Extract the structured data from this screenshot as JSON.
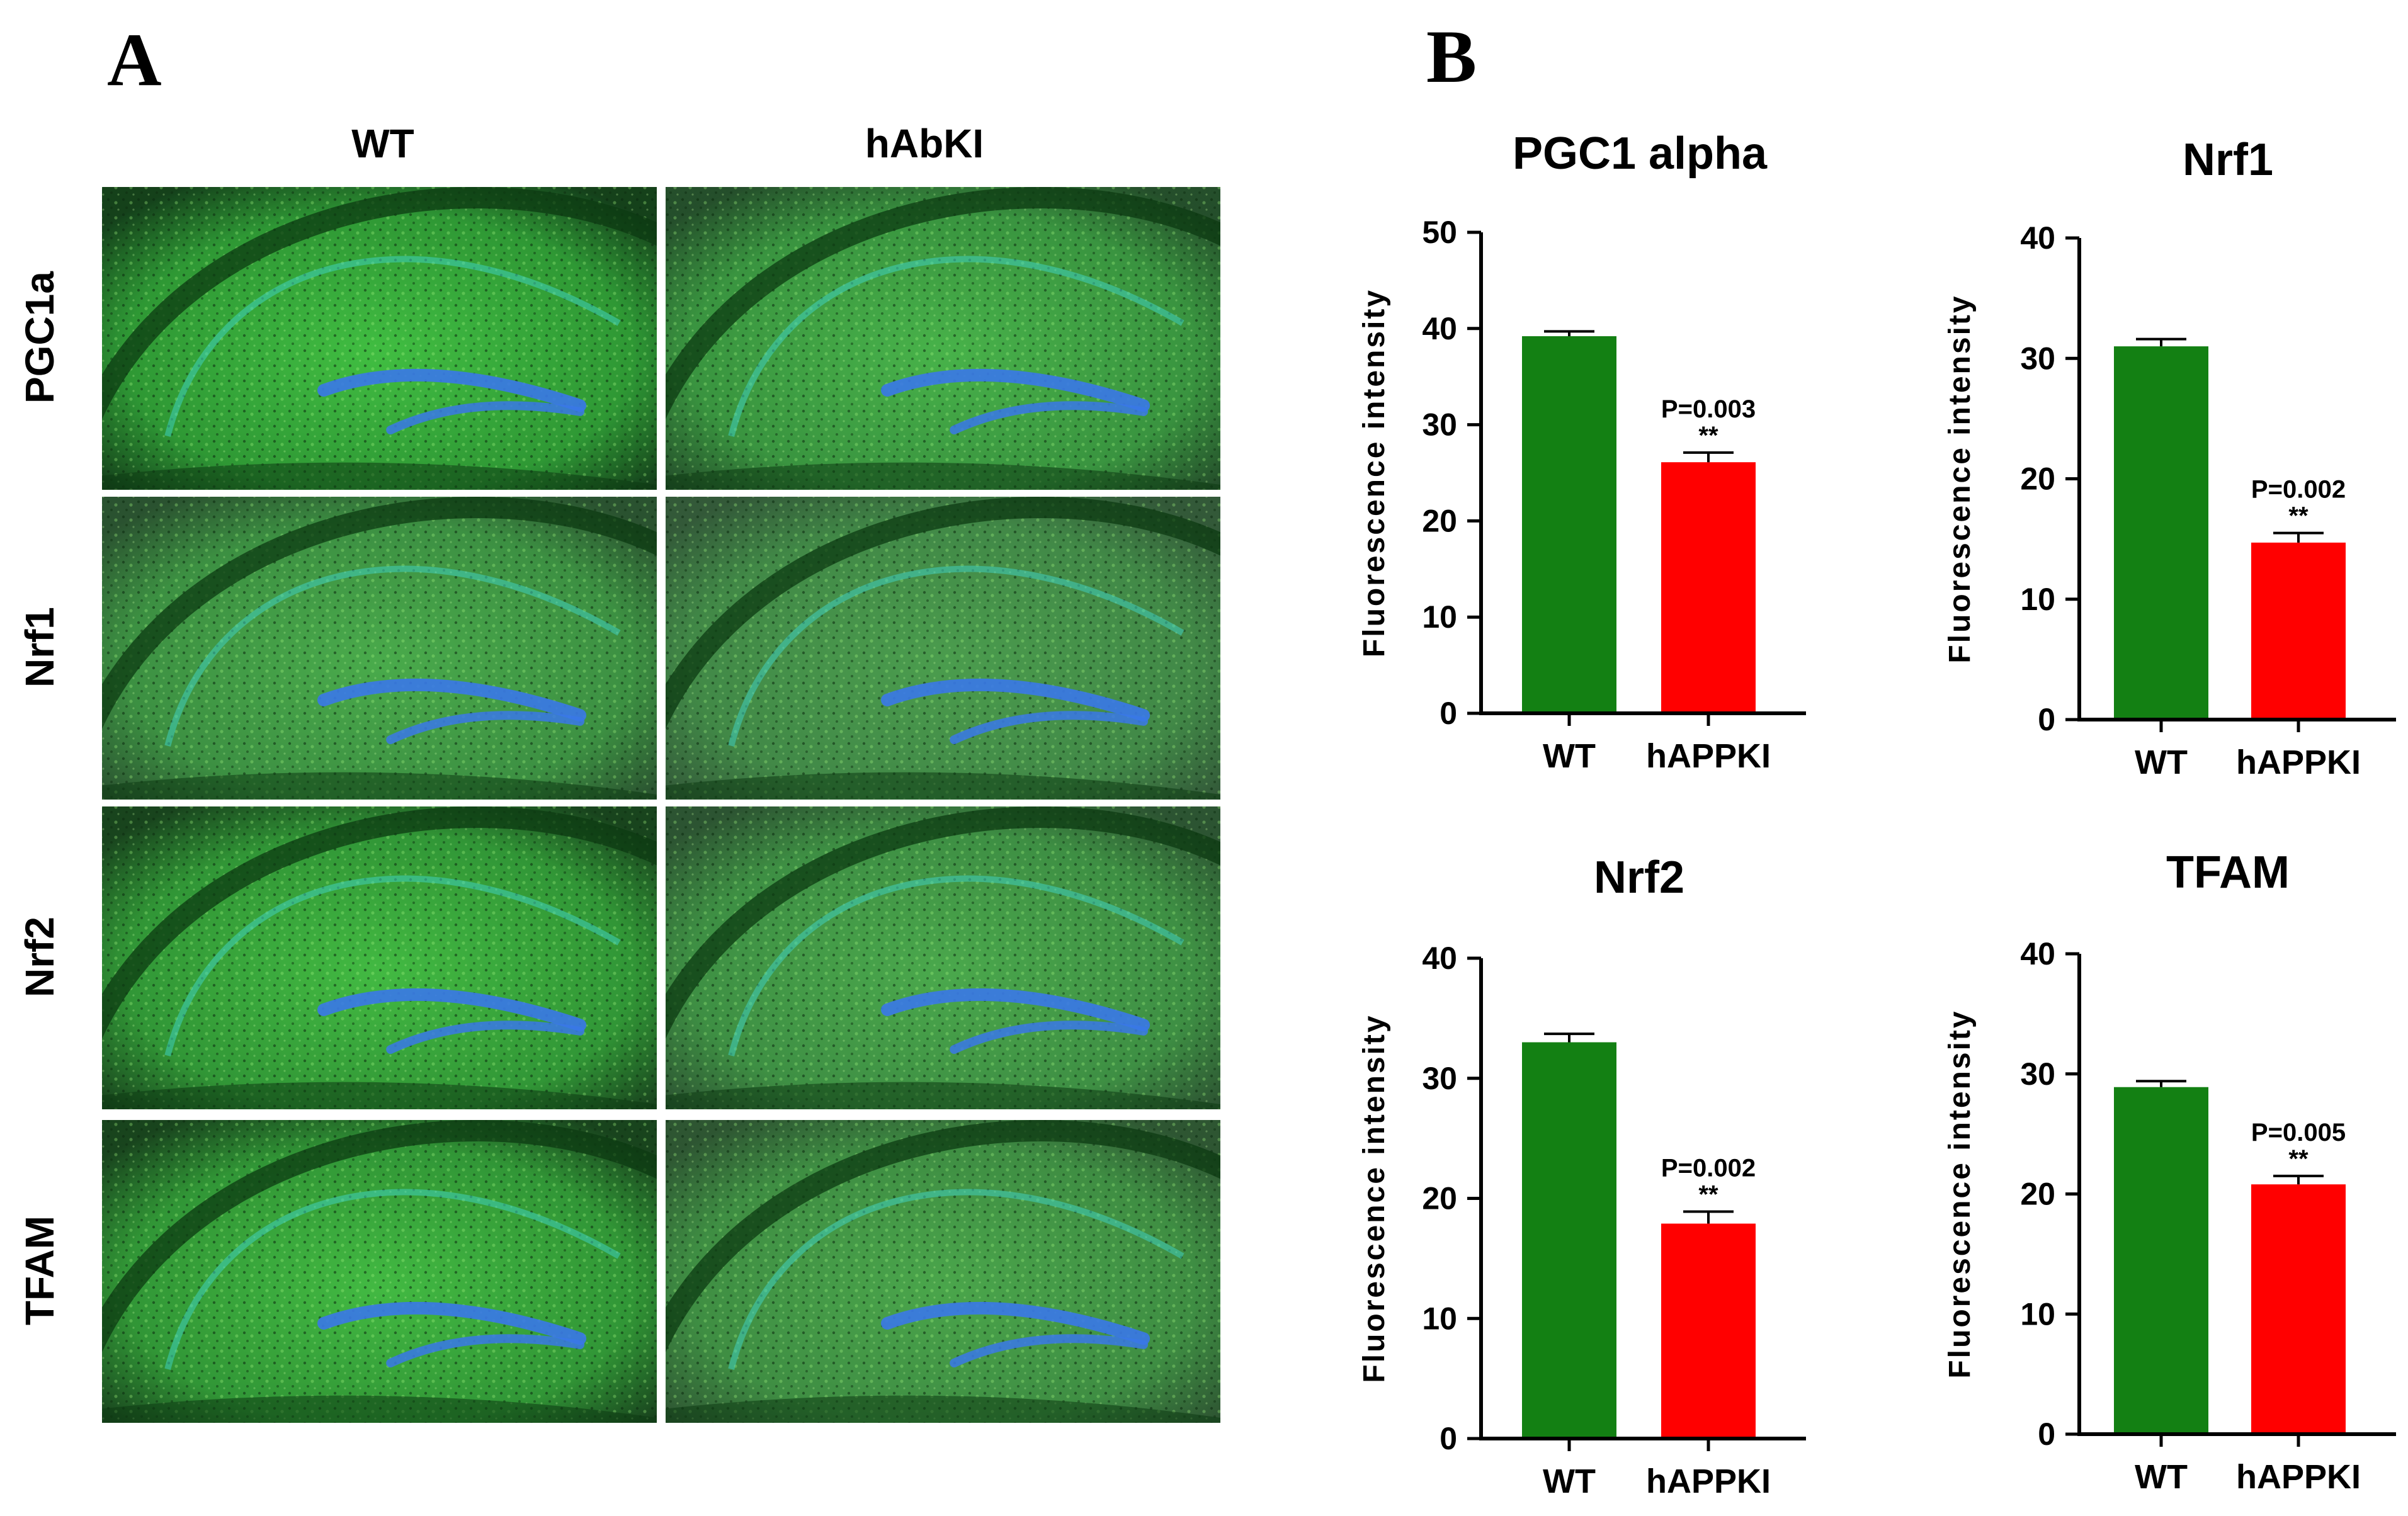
{
  "panel_a": {
    "letter": "A",
    "columns": [
      "WT",
      "hAbKI"
    ],
    "rows": [
      "PGC1a",
      "Nrf1",
      "Nrf2",
      "TFAM"
    ],
    "images": [
      {
        "row": "PGC1a",
        "column": "WT",
        "intensity": 0.92
      },
      {
        "row": "PGC1a",
        "column": "hAbKI",
        "intensity": 0.72
      },
      {
        "row": "Nrf1",
        "column": "WT",
        "intensity": 0.62
      },
      {
        "row": "Nrf1",
        "column": "hAbKI",
        "intensity": 0.42
      },
      {
        "row": "Nrf2",
        "column": "WT",
        "intensity": 0.86
      },
      {
        "row": "Nrf2",
        "column": "hAbKI",
        "intensity": 0.58
      },
      {
        "row": "TFAM",
        "column": "WT",
        "intensity": 0.86
      },
      {
        "row": "TFAM",
        "column": "hAbKI",
        "intensity": 0.55
      }
    ],
    "colors": {
      "green_bright": "#3fc93f",
      "green_dark": "#0c3a12",
      "blue": "#3a78e8",
      "cyan": "#3fd4c8"
    }
  },
  "panel_b": {
    "letter": "B"
  },
  "chart_data": [
    {
      "type": "bar",
      "title": "PGC1 alpha",
      "categories": [
        "WT",
        "hAPPKI"
      ],
      "values": [
        39.2,
        26.1
      ],
      "errors": [
        0.5,
        1.0
      ],
      "colors": [
        "#138013",
        "#ff0000"
      ],
      "xlabel": "",
      "ylabel": "Fluorescence intensity",
      "ylim": [
        0,
        50
      ],
      "yticks": [
        0,
        10,
        20,
        30,
        40,
        50
      ],
      "annotation": {
        "text": "P=0.003",
        "stars": "**",
        "category": "hAPPKI"
      }
    },
    {
      "type": "bar",
      "title": "Nrf1",
      "categories": [
        "WT",
        "hAPPKI"
      ],
      "values": [
        31.0,
        14.7
      ],
      "errors": [
        0.6,
        0.8
      ],
      "colors": [
        "#138013",
        "#ff0000"
      ],
      "xlabel": "",
      "ylabel": "Fluorescence intensity",
      "ylim": [
        0,
        40
      ],
      "yticks": [
        0,
        10,
        20,
        30,
        40
      ],
      "annotation": {
        "text": "P=0.002",
        "stars": "**",
        "category": "hAPPKI"
      }
    },
    {
      "type": "bar",
      "title": "Nrf2",
      "categories": [
        "WT",
        "hAPPKI"
      ],
      "values": [
        33.0,
        17.9
      ],
      "errors": [
        0.7,
        1.0
      ],
      "colors": [
        "#138013",
        "#ff0000"
      ],
      "xlabel": "",
      "ylabel": "Fluorescence intensity",
      "ylim": [
        0,
        40
      ],
      "yticks": [
        0,
        10,
        20,
        30,
        40
      ],
      "annotation": {
        "text": "P=0.002",
        "stars": "**",
        "category": "hAPPKI"
      }
    },
    {
      "type": "bar",
      "title": "TFAM",
      "categories": [
        "WT",
        "hAPPKI"
      ],
      "values": [
        28.9,
        20.8
      ],
      "errors": [
        0.5,
        0.7
      ],
      "colors": [
        "#138013",
        "#ff0000"
      ],
      "xlabel": "",
      "ylabel": "Fluorescence intensity",
      "ylim": [
        0,
        40
      ],
      "yticks": [
        0,
        10,
        20,
        30,
        40
      ],
      "annotation": {
        "text": "P=0.005",
        "stars": "**",
        "category": "hAPPKI"
      }
    }
  ]
}
